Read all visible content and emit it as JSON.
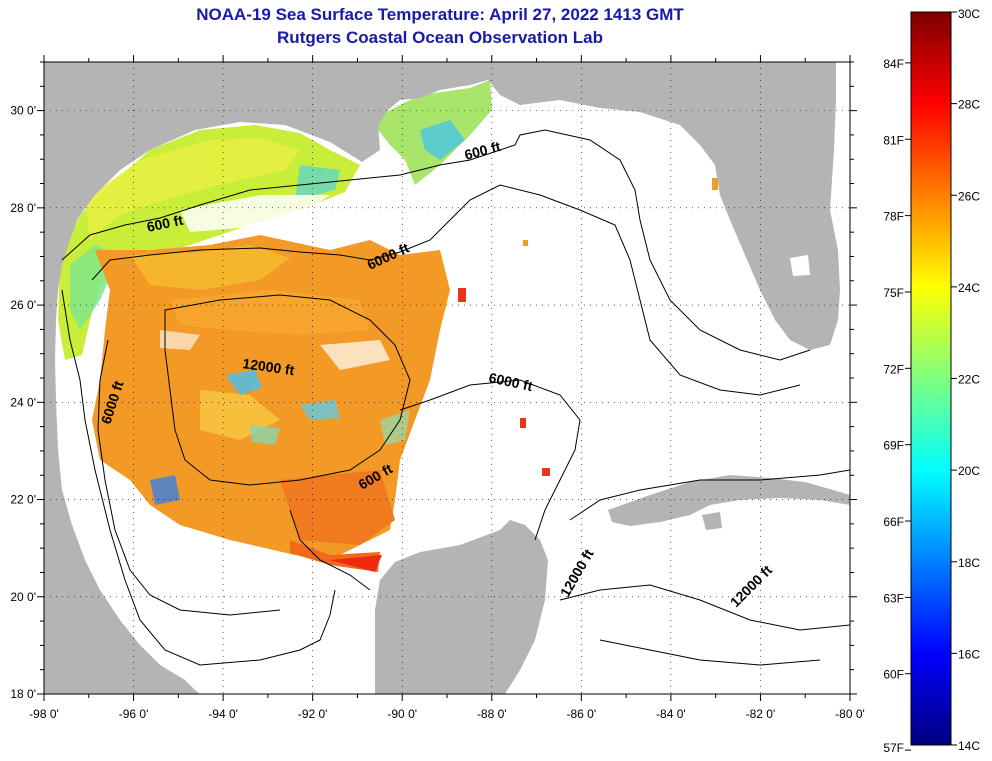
{
  "title": "NOAA-19 Sea Surface Temperature:  April 27, 2022 1413 GMT",
  "subtitle": "Rutgers Coastal Ocean Observation Lab",
  "map": {
    "lon_range": [
      -98,
      -80
    ],
    "lat_range": [
      18,
      31
    ],
    "x_ticks": [
      "-98 0'",
      "-96 0'",
      "-94 0'",
      "-92 0'",
      "-90 0'",
      "-88 0'",
      "-86 0'",
      "-84 0'",
      "-82 0'",
      "-80 0'"
    ],
    "y_ticks": [
      "30 0'",
      "28 0'",
      "26 0'",
      "24 0'",
      "22 0'",
      "20 0'",
      "18 0'"
    ],
    "grid": "dotted",
    "land_color": "#b4b4b4",
    "contour_labels": [
      "600 ft",
      "600 ft",
      "600 ft",
      "6000 ft",
      "6000 ft",
      "6000 ft",
      "12000 ft",
      "12000 ft",
      "12000 ft"
    ]
  },
  "colorbar": {
    "min_c": 14,
    "max_c": 30,
    "celsius_labels": [
      "30C",
      "28C",
      "26C",
      "24C",
      "22C",
      "20C",
      "18C",
      "16C",
      "14C"
    ],
    "fahrenheit_labels": [
      "84F",
      "81F",
      "78F",
      "75F",
      "72F",
      "69F",
      "66F",
      "63F",
      "60F",
      "57F"
    ],
    "colors": [
      "#00007f",
      "#0000ff",
      "#007fff",
      "#00ffff",
      "#7fff7f",
      "#ffff00",
      "#ff7f00",
      "#ff0000",
      "#7f0000"
    ]
  }
}
